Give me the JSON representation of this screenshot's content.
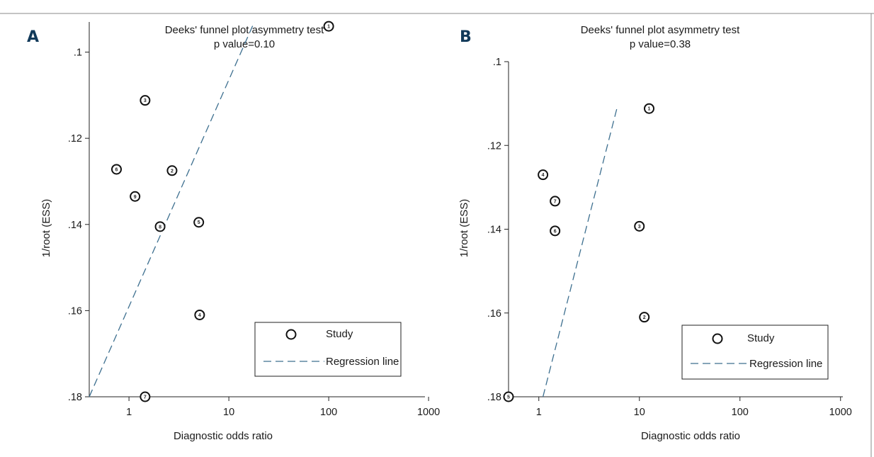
{
  "chart_data": [
    {
      "panel": "A",
      "type": "scatter",
      "title": "Deeks' funnel plot asymmetry test",
      "subtitle": "p value=0.10",
      "xlabel": "Diagnostic odds ratio",
      "ylabel": "1/root (ESS)",
      "x_scale": "log",
      "xlim": [
        0.4,
        1000
      ],
      "ylim": [
        0.18,
        0.093
      ],
      "y_axis_reversed": true,
      "x_ticks": [
        "1",
        "10",
        "100",
        "1000"
      ],
      "y_ticks": [
        ".1",
        ".12",
        ".14",
        ".16",
        ".18"
      ],
      "points": [
        {
          "label": "1",
          "x": 100,
          "y": 0.094
        },
        {
          "label": "2",
          "x": 2.7,
          "y": 0.1275
        },
        {
          "label": "3",
          "x": 1.45,
          "y": 0.1112
        },
        {
          "label": "4",
          "x": 5.1,
          "y": 0.161
        },
        {
          "label": "5",
          "x": 5,
          "y": 0.1395
        },
        {
          "label": "6",
          "x": 0.75,
          "y": 0.1272
        },
        {
          "label": "7",
          "x": 1.45,
          "y": 0.18
        },
        {
          "label": "8",
          "x": 2.05,
          "y": 0.1405
        },
        {
          "label": "9",
          "x": 1.15,
          "y": 0.1335
        }
      ],
      "regression_line": {
        "x": [
          0.4,
          18
        ],
        "y": [
          0.18,
          0.093
        ]
      },
      "legend": {
        "position": "bottom-right",
        "entries": [
          "Study",
          "Regression line"
        ]
      },
      "colors": {
        "line": "#3d6f8f",
        "marker": "#111111"
      }
    },
    {
      "panel": "B",
      "type": "scatter",
      "title": "Deeks' funnel plot asymmetry test",
      "subtitle": "p value=0.38",
      "xlabel": "Diagnostic odds ratio",
      "ylabel": "1/root (ESS)",
      "x_scale": "log",
      "xlim": [
        0.5,
        1000
      ],
      "ylim": [
        0.18,
        0.1
      ],
      "y_axis_reversed": true,
      "x_ticks": [
        "1",
        "10",
        "100",
        "1000"
      ],
      "y_ticks": [
        ".1",
        ".12",
        ".14",
        ".16",
        ".18"
      ],
      "points": [
        {
          "label": "1",
          "x": 12.5,
          "y": 0.1112
        },
        {
          "label": "2",
          "x": 11.2,
          "y": 0.161
        },
        {
          "label": "3",
          "x": 10,
          "y": 0.1393
        },
        {
          "label": "4",
          "x": 1.1,
          "y": 0.127
        },
        {
          "label": "5",
          "x": 0.5,
          "y": 0.18
        },
        {
          "label": "6",
          "x": 1.45,
          "y": 0.1404
        },
        {
          "label": "7",
          "x": 1.45,
          "y": 0.1333
        }
      ],
      "regression_line": {
        "x": [
          1.1,
          6
        ],
        "y": [
          0.18,
          0.111
        ]
      },
      "legend": {
        "position": "bottom-right",
        "entries": [
          "Study",
          "Regression line"
        ]
      },
      "colors": {
        "line": "#3d6f8f",
        "marker": "#111111"
      }
    }
  ]
}
